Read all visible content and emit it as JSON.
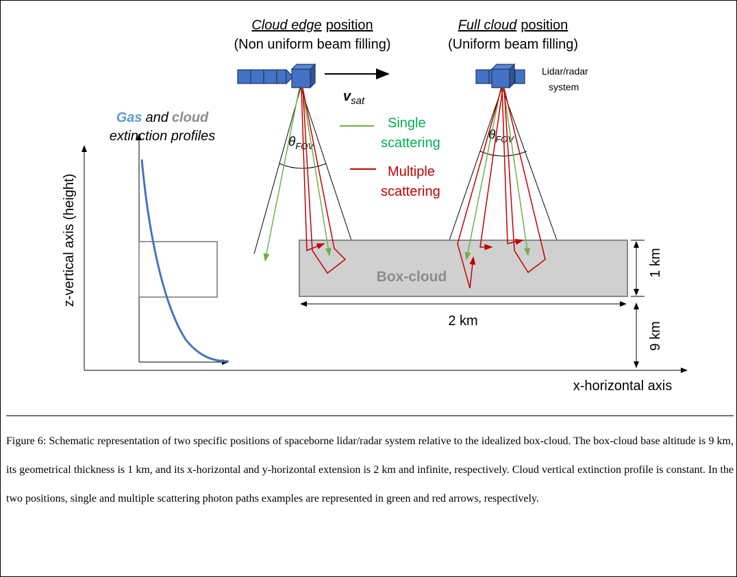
{
  "figure": {
    "left_title": {
      "emphasis": "Cloud edge",
      "rest": "position",
      "subtitle": "(Non uniform beam filling)"
    },
    "right_title": {
      "emphasis": "Full cloud",
      "rest": "position",
      "subtitle": "(Uniform beam filling)"
    },
    "system_label": [
      "Lidar/radar",
      "system"
    ],
    "velocity": {
      "symbol": "v",
      "subscript": "sat"
    },
    "fov": {
      "symbol": "θ",
      "subscript": "FOV"
    },
    "legend": {
      "single": [
        "Single",
        "scattering"
      ],
      "multiple": [
        "Multiple",
        "scattering"
      ]
    },
    "profile_title": {
      "gas": "Gas",
      "and": "and",
      "cloud": "cloud",
      "line2": "extinction profiles"
    },
    "box_label": "Box-cloud",
    "width_label": "2 km",
    "thickness_label": "1 km",
    "altitude_label": "9 km",
    "z_axis_label": "z-vertical axis (height)",
    "x_axis_label": "x-horizontal axis"
  },
  "caption": "Figure 6: Schematic representation of two specific positions of spaceborne lidar/radar system relative to the idealized box-cloud. The box-cloud base altitude is 9 km, its geometrical thickness is 1 km, and its x-horizontal and y-horizontal extension is 2 km and infinite, respectively. Cloud vertical extinction profile is constant. In the two positions, single and multiple scattering photon paths examples are represented in green and red arrows, respectively."
}
